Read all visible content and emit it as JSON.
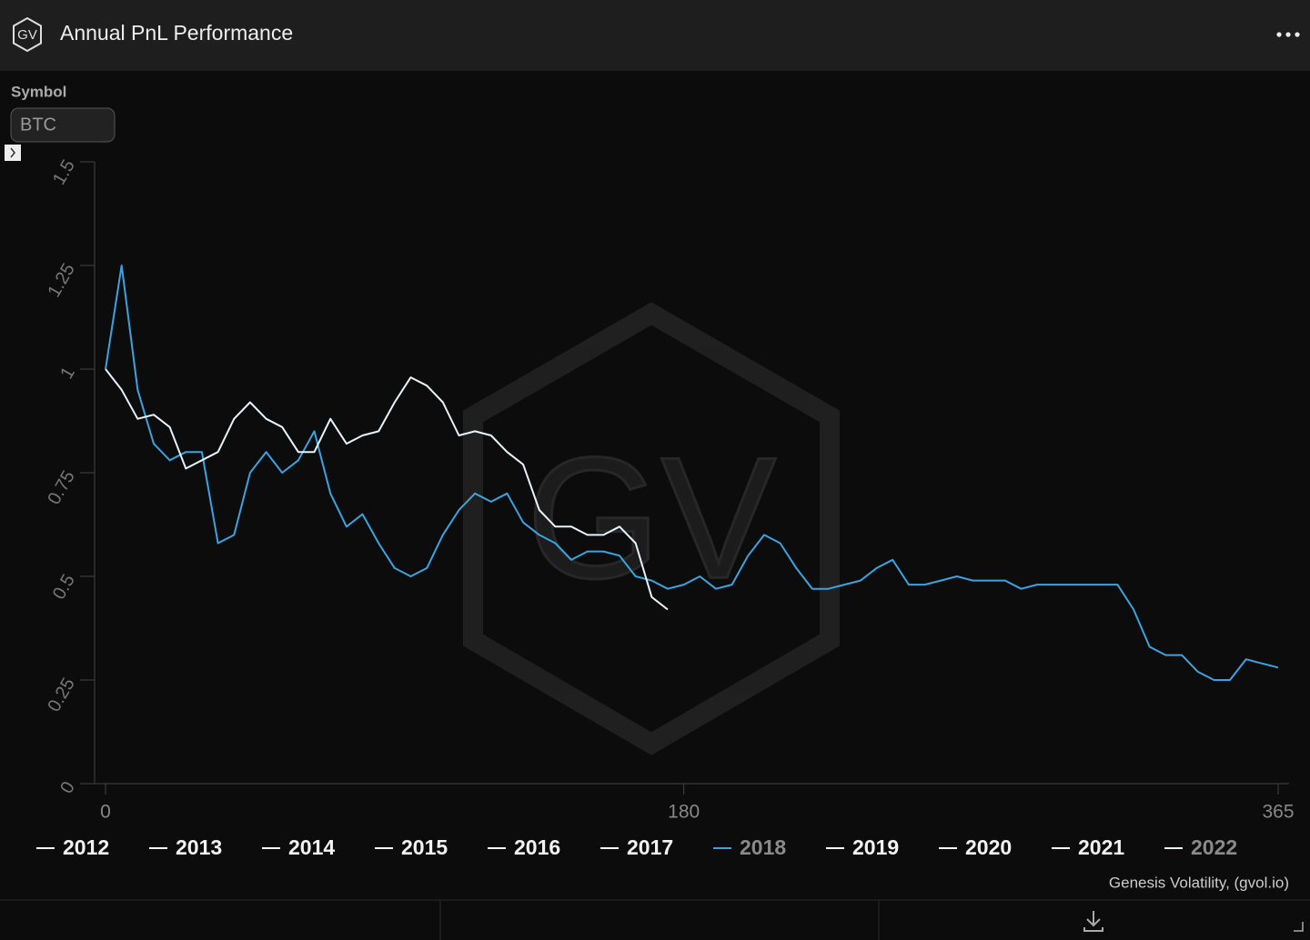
{
  "header": {
    "logo": "GV",
    "title": "Annual PnL Performance"
  },
  "controls": {
    "label": "Symbol",
    "value": "BTC"
  },
  "chart_data": {
    "type": "line",
    "x": [
      0,
      5,
      10,
      15,
      20,
      25,
      30,
      35,
      40,
      45,
      50,
      55,
      60,
      65,
      70,
      75,
      80,
      85,
      90,
      95,
      100,
      105,
      110,
      115,
      120,
      125,
      130,
      135,
      140,
      145,
      150,
      155,
      160,
      165,
      170,
      175,
      180,
      185,
      190,
      195,
      200,
      205,
      210,
      215,
      220,
      225,
      230,
      235,
      240,
      245,
      250,
      255,
      260,
      265,
      270,
      275,
      280,
      285,
      290,
      295,
      300,
      305,
      310,
      315,
      320,
      325,
      330,
      335,
      340,
      345,
      350,
      355,
      360,
      365
    ],
    "xlim": [
      0,
      365
    ],
    "xticks": [
      0,
      180,
      365
    ],
    "ylim": [
      0,
      1.5
    ],
    "yticks": [
      0,
      0.25,
      0.5,
      0.75,
      1,
      1.25,
      1.5
    ],
    "series": [
      {
        "name": "2012",
        "color": "#ffffff"
      },
      {
        "name": "2013",
        "color": "#ffffff"
      },
      {
        "name": "2014",
        "color": "#ffffff"
      },
      {
        "name": "2015",
        "color": "#ffffff"
      },
      {
        "name": "2016",
        "color": "#ffffff"
      },
      {
        "name": "2017",
        "color": "#ffffff"
      },
      {
        "name": "2018",
        "color": "#3ba3e0",
        "values": [
          1.0,
          1.25,
          0.95,
          0.82,
          0.78,
          0.8,
          0.8,
          0.58,
          0.6,
          0.75,
          0.8,
          0.75,
          0.78,
          0.85,
          0.7,
          0.62,
          0.65,
          0.58,
          0.52,
          0.5,
          0.52,
          0.6,
          0.66,
          0.7,
          0.68,
          0.7,
          0.63,
          0.6,
          0.58,
          0.54,
          0.56,
          0.56,
          0.55,
          0.5,
          0.49,
          0.47,
          0.48,
          0.5,
          0.47,
          0.48,
          0.55,
          0.6,
          0.58,
          0.52,
          0.47,
          0.47,
          0.48,
          0.49,
          0.52,
          0.54,
          0.48,
          0.48,
          0.49,
          0.5,
          0.49,
          0.49,
          0.49,
          0.47,
          0.48,
          0.48,
          0.48,
          0.48,
          0.48,
          0.48,
          0.42,
          0.33,
          0.31,
          0.31,
          0.27,
          0.25,
          0.25,
          0.3,
          0.29,
          0.28
        ]
      },
      {
        "name": "2019",
        "color": "#ffffff"
      },
      {
        "name": "2020",
        "color": "#ffffff"
      },
      {
        "name": "2021",
        "color": "#ffffff"
      },
      {
        "name": "2022",
        "color": "#e6f3fb",
        "values": [
          1.0,
          0.95,
          0.88,
          0.89,
          0.86,
          0.76,
          0.78,
          0.8,
          0.88,
          0.92,
          0.88,
          0.86,
          0.8,
          0.8,
          0.88,
          0.82,
          0.84,
          0.85,
          0.92,
          0.98,
          0.96,
          0.92,
          0.84,
          0.85,
          0.84,
          0.8,
          0.77,
          0.66,
          0.62,
          0.62,
          0.6,
          0.6,
          0.62,
          0.58,
          0.45,
          0.42,
          null,
          null,
          null,
          null,
          null,
          null,
          null,
          null,
          null,
          null,
          null,
          null,
          null,
          null,
          null,
          null,
          null,
          null,
          null,
          null,
          null,
          null,
          null,
          null,
          null,
          null,
          null,
          null,
          null,
          null,
          null,
          null,
          null,
          null,
          null,
          null,
          null,
          null
        ]
      }
    ]
  },
  "footer": {
    "credit": "Genesis Volatility, (gvol.io)"
  }
}
